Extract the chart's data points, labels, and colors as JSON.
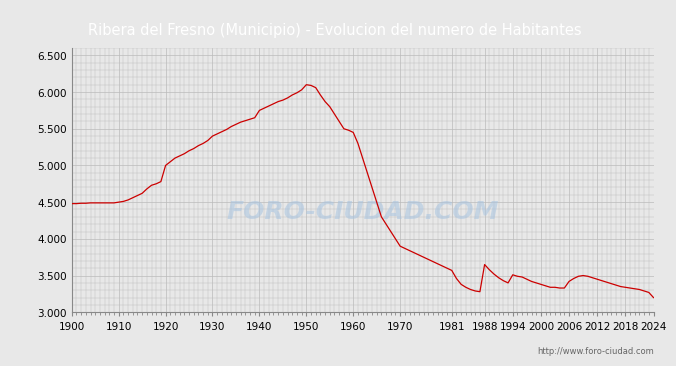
{
  "title": "Ribera del Fresno (Municipio) - Evolucion del numero de Habitantes",
  "title_bg": "#4A7BC4",
  "title_color": "white",
  "title_fontsize": 10.5,
  "url_text": "http://www.foro-ciudad.com",
  "watermark": "FORO-CIUDAD.COM",
  "years": [
    1900,
    1901,
    1902,
    1903,
    1904,
    1905,
    1906,
    1907,
    1908,
    1909,
    1910,
    1911,
    1912,
    1913,
    1914,
    1915,
    1916,
    1917,
    1918,
    1919,
    1920,
    1921,
    1922,
    1923,
    1924,
    1925,
    1926,
    1927,
    1928,
    1929,
    1930,
    1931,
    1932,
    1933,
    1934,
    1935,
    1936,
    1937,
    1938,
    1939,
    1940,
    1941,
    1942,
    1943,
    1944,
    1945,
    1946,
    1947,
    1948,
    1949,
    1950,
    1951,
    1952,
    1953,
    1954,
    1955,
    1956,
    1957,
    1958,
    1959,
    1960,
    1961,
    1962,
    1963,
    1964,
    1965,
    1966,
    1967,
    1968,
    1969,
    1970,
    1971,
    1972,
    1973,
    1974,
    1975,
    1976,
    1977,
    1978,
    1979,
    1980,
    1981,
    1982,
    1983,
    1984,
    1985,
    1986,
    1987,
    1988,
    1989,
    1990,
    1991,
    1992,
    1993,
    1994,
    1995,
    1996,
    1997,
    1998,
    1999,
    2000,
    2001,
    2002,
    2003,
    2004,
    2005,
    2006,
    2007,
    2008,
    2009,
    2010,
    2011,
    2012,
    2013,
    2014,
    2015,
    2016,
    2017,
    2018,
    2019,
    2020,
    2021,
    2022,
    2023,
    2024
  ],
  "population": [
    4480,
    4480,
    4485,
    4485,
    4490,
    4490,
    4490,
    4490,
    4490,
    4490,
    4500,
    4510,
    4530,
    4560,
    4590,
    4620,
    4680,
    4730,
    4750,
    4780,
    5000,
    5050,
    5100,
    5130,
    5160,
    5200,
    5230,
    5270,
    5300,
    5340,
    5400,
    5430,
    5460,
    5490,
    5530,
    5560,
    5590,
    5610,
    5630,
    5650,
    5750,
    5780,
    5810,
    5840,
    5870,
    5890,
    5920,
    5960,
    5990,
    6030,
    6100,
    6090,
    6060,
    5960,
    5870,
    5800,
    5700,
    5600,
    5500,
    5480,
    5450,
    5300,
    5100,
    4900,
    4700,
    4500,
    4300,
    4200,
    4100,
    4000,
    3900,
    3870,
    3840,
    3810,
    3780,
    3750,
    3720,
    3690,
    3660,
    3630,
    3600,
    3570,
    3460,
    3380,
    3340,
    3310,
    3290,
    3280,
    3650,
    3580,
    3520,
    3470,
    3430,
    3400,
    3510,
    3490,
    3480,
    3450,
    3420,
    3400,
    3380,
    3360,
    3340,
    3340,
    3330,
    3330,
    3420,
    3460,
    3490,
    3500,
    3490,
    3470,
    3450,
    3430,
    3410,
    3390,
    3370,
    3350,
    3340,
    3330,
    3320,
    3310,
    3290,
    3270,
    3200
  ],
  "line_color": "#CC0000",
  "bg_color": "#E8E8E8",
  "plot_bg": "#E8E8E8",
  "grid_color": "#BBBBBB",
  "ylim": [
    3000,
    6600
  ],
  "yticks": [
    3000,
    3500,
    4000,
    4500,
    5000,
    5500,
    6000,
    6500
  ],
  "xtick_labels": [
    1900,
    1910,
    1920,
    1930,
    1940,
    1950,
    1960,
    1970,
    1981,
    1988,
    1994,
    2000,
    2006,
    2012,
    2018,
    2024
  ]
}
